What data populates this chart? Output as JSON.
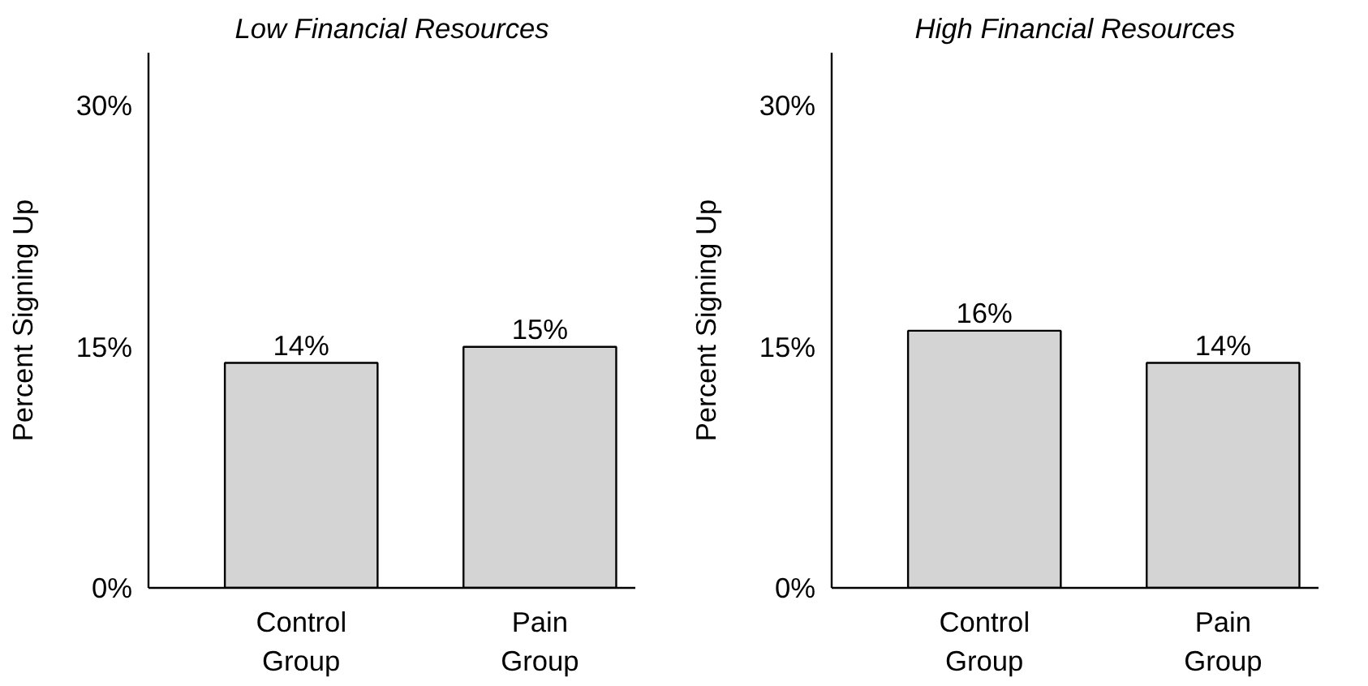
{
  "chart_data": [
    {
      "type": "bar",
      "title": "Low Financial Resources",
      "ylabel": "Percent Signing Up",
      "categories": [
        "Control Group",
        "Pain Group"
      ],
      "values": [
        14,
        15
      ],
      "value_labels": [
        "14%",
        "15%"
      ],
      "color": "#d4d4d4",
      "ylim": [
        0,
        33.3
      ],
      "yticks": [
        {
          "value": 0,
          "label": "0%"
        },
        {
          "value": 15,
          "label": "15%"
        },
        {
          "value": 30,
          "label": "30%"
        }
      ]
    },
    {
      "type": "bar",
      "title": "High Financial Resources",
      "ylabel": "Percent Signing Up",
      "categories": [
        "Control Group",
        "Pain Group"
      ],
      "values": [
        16,
        14
      ],
      "value_labels": [
        "16%",
        "14%"
      ],
      "color": "#d4d4d4",
      "ylim": [
        0,
        33.3
      ],
      "yticks": [
        {
          "value": 0,
          "label": "0%"
        },
        {
          "value": 15,
          "label": "15%"
        },
        {
          "value": 30,
          "label": "30%"
        }
      ]
    }
  ]
}
